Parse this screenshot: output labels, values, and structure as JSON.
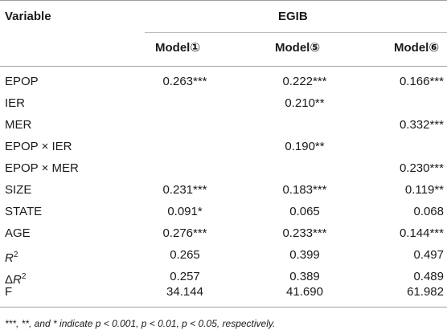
{
  "table": {
    "header": {
      "variable_label": "Variable",
      "group_label": "EGIB",
      "models": [
        "Model①",
        "Model⑤",
        "Model⑥"
      ]
    },
    "rows": [
      {
        "label": "EPOP",
        "values": [
          "0.263***",
          "0.222***",
          "0.166***"
        ]
      },
      {
        "label": "IER",
        "values": [
          "",
          "0.210**",
          ""
        ]
      },
      {
        "label": "MER",
        "values": [
          "",
          "",
          "0.332***"
        ]
      },
      {
        "label": "EPOP × IER",
        "values": [
          "",
          "0.190**",
          ""
        ]
      },
      {
        "label": "EPOP × MER",
        "values": [
          "",
          "",
          "0.230***"
        ]
      },
      {
        "label": "SIZE",
        "values": [
          "0.231***",
          "0.183***",
          "0.119**"
        ]
      },
      {
        "label": "STATE",
        "values": [
          "0.091*",
          "0.065",
          "0.068"
        ]
      },
      {
        "label": "AGE",
        "values": [
          "0.276***",
          "0.233***",
          "0.144***"
        ]
      },
      {
        "label_main": "R",
        "label_sup": "2",
        "values": [
          "0.265",
          "0.399",
          "0.497"
        ]
      },
      {
        "label_prefix": "Δ",
        "label_main": "R",
        "label_sup": "2",
        "values": [
          "0.257",
          "0.389",
          "0.489"
        ]
      },
      {
        "label": "F",
        "values": [
          "34.144",
          "41.690",
          "61.982"
        ]
      }
    ],
    "footnote": "***, **, and * indicate p < 0.001, p < 0.01, p < 0.05, respectively."
  }
}
